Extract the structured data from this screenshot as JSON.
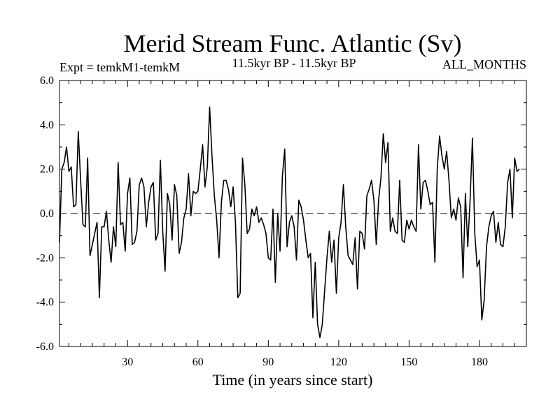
{
  "chart_data": {
    "type": "line",
    "title": "Merid Stream Func. Atlantic (Sv)",
    "subtitle_left": "Expt = temkM1-temkM",
    "subtitle_center": "11.5kyr BP - 11.5kyr BP",
    "subtitle_right": "ALL_MONTHS",
    "xlabel": "Time (in years since start)",
    "ylabel": "",
    "xlim": [
      1,
      200
    ],
    "ylim": [
      -6,
      6
    ],
    "xticks": [
      30,
      60,
      90,
      120,
      150,
      180
    ],
    "xtick_labels": [
      "30",
      "60",
      "90",
      "120",
      "150",
      "180"
    ],
    "yticks": [
      -6,
      -4,
      -2,
      0,
      2,
      4,
      6
    ],
    "ytick_labels": [
      "-6.0",
      "-4.0",
      "-2.0",
      "0.0",
      "2.0",
      "4.0",
      "6.0"
    ],
    "reference_line": 0,
    "series": [
      {
        "name": "Merid Stream Func. Atlantic",
        "x_start": 1,
        "x_step": 1,
        "values": [
          -1.3,
          2.0,
          2.3,
          3.0,
          1.9,
          2.1,
          0.3,
          0.4,
          3.7,
          1.5,
          -0.5,
          -0.6,
          2.5,
          -1.9,
          -1.4,
          -0.9,
          -0.4,
          -3.8,
          -0.6,
          -0.6,
          0.1,
          -1.2,
          -2.2,
          -0.6,
          -1.5,
          2.3,
          -0.5,
          -0.4,
          -1.7,
          0.9,
          1.6,
          -1.4,
          -1.3,
          -0.8,
          1.3,
          1.6,
          1.2,
          -0.6,
          0.5,
          1.2,
          1.4,
          -1.2,
          -0.9,
          2.4,
          -0.8,
          -2.6,
          0.9,
          0.4,
          -1.2,
          1.3,
          0.8,
          -1.8,
          -1.3,
          -0.2,
          0.2,
          1.8,
          -0.1,
          1.0,
          0.9,
          1.0,
          2.0,
          3.1,
          1.2,
          2.1,
          4.8,
          2.6,
          0.8,
          -0.3,
          -2.0,
          0.5,
          1.5,
          1.5,
          1.1,
          0.3,
          1.2,
          -0.4,
          -3.8,
          -3.6,
          2.5,
          1.3,
          -0.9,
          -0.7,
          0.2,
          -0.1,
          0.3,
          -0.4,
          -0.2,
          -0.5,
          -0.9,
          -2.0,
          -2.1,
          0.2,
          -3.1,
          0.0,
          -1.7,
          1.7,
          2.9,
          -1.5,
          -0.4,
          -0.1,
          -0.6,
          -2.1,
          0.6,
          0.3,
          -0.3,
          -1.2,
          -2.0,
          -1.8,
          -4.7,
          -2.2,
          -5.0,
          -5.6,
          -5.0,
          -3.5,
          -2.0,
          -0.8,
          -2.2,
          -1.2,
          -3.6,
          -1.1,
          -0.4,
          1.3,
          -0.6,
          -1.9,
          -2.1,
          -2.3,
          -1.1,
          -3.4,
          -0.8,
          -0.9,
          -1.6,
          0.8,
          1.1,
          1.5,
          0.6,
          -1.4,
          0.6,
          1.6,
          3.6,
          2.3,
          3.2,
          -0.8,
          -0.2,
          -0.8,
          -0.9,
          1.5,
          -1.2,
          -1.3,
          -0.3,
          -0.7,
          -0.3,
          -0.6,
          -0.8,
          3.1,
          0.2,
          1.4,
          1.5,
          1.0,
          0.4,
          0.5,
          -2.2,
          2.0,
          3.5,
          2.6,
          2.0,
          2.8,
          1.5,
          -0.2,
          0.2,
          -0.3,
          0.7,
          0.3,
          -2.9,
          0.9,
          -1.5,
          0.6,
          3.4,
          -0.9,
          -2.4,
          -2.1,
          -4.8,
          -3.9,
          -1.5,
          -0.6,
          -0.1,
          0.1,
          -1.3,
          -0.4,
          -1.4,
          -1.5,
          -0.6,
          1.4,
          2.0,
          -0.2,
          2.5,
          1.9,
          2.0
        ]
      }
    ]
  }
}
